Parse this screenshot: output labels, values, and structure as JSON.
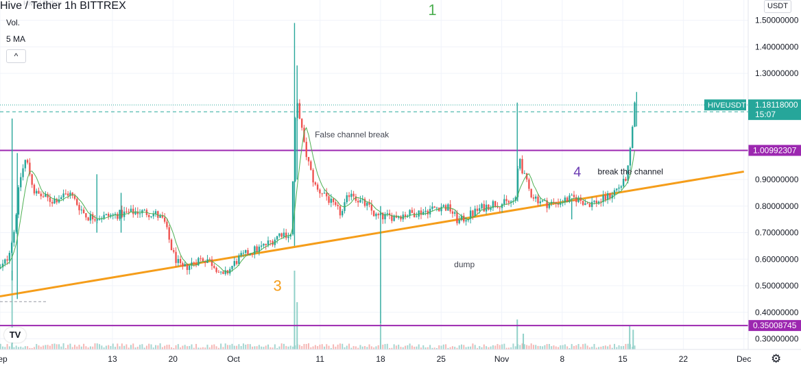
{
  "header": {
    "symbol_title": "Hive / Tether  1h  BITTREX",
    "watermark": "Hive / Tether",
    "indicators": [
      "Vol.",
      "5 MA"
    ],
    "collapse_label": "^",
    "currency": "USDT"
  },
  "logo_text": "TV",
  "settings_icon": "gear-icon",
  "chart_data": {
    "type": "candlestick",
    "symbol": "HIVEUSDT",
    "exchange": "BITTREX",
    "interval": "1h",
    "ylim": [
      0.28,
      1.6
    ],
    "y_ticks": [
      {
        "value": 0.3,
        "label": "0.30000000"
      },
      {
        "value": 0.4,
        "label": "0.40000000"
      },
      {
        "value": 0.5,
        "label": "0.50000000"
      },
      {
        "value": 0.6,
        "label": "0.60000000"
      },
      {
        "value": 0.7,
        "label": "0.70000000"
      },
      {
        "value": 0.8,
        "label": "0.80000000"
      },
      {
        "value": 0.9,
        "label": "0.90000000"
      },
      {
        "value": 1.3,
        "label": "1.30000000"
      },
      {
        "value": 1.4,
        "label": "1.40000000"
      },
      {
        "value": 1.5,
        "label": "1.50000000"
      }
    ],
    "x_ticks": [
      {
        "day": 30,
        "label": "Sep"
      },
      {
        "day": 43,
        "label": "13"
      },
      {
        "day": 50,
        "label": "20"
      },
      {
        "day": 57,
        "label": "Oct"
      },
      {
        "day": 67,
        "label": "11"
      },
      {
        "day": 74,
        "label": "18"
      },
      {
        "day": 81,
        "label": "25"
      },
      {
        "day": 88,
        "label": "Nov"
      },
      {
        "day": 95,
        "label": "8"
      },
      {
        "day": 102,
        "label": "15"
      },
      {
        "day": 109,
        "label": "22"
      },
      {
        "day": 116,
        "label": "Dec"
      }
    ],
    "xlim_days": [
      30,
      116.5
    ],
    "last_price": {
      "label": "HIVEUSDT",
      "value": 1.18118,
      "value_label": "1.18118000",
      "countdown": "15:07"
    },
    "price_levels": [
      {
        "value": 1.15537321,
        "label": "1.15537321",
        "style": "dashed",
        "color": "#26a69a"
      },
      {
        "value": 1.00992307,
        "label": "1.00992307",
        "style": "solid",
        "color": "#9c27b0"
      },
      {
        "value": 0.35008745,
        "label": "0.35008745",
        "style": "solid",
        "color": "#9c27b0"
      }
    ],
    "trendline": {
      "color": "#f59d1a",
      "points": [
        [
          30,
          0.46
        ],
        [
          116,
          0.93
        ]
      ]
    },
    "annotations": [
      {
        "text": "1",
        "day": 79.5,
        "price": 1.54,
        "color": "#4caf50",
        "size": 22
      },
      {
        "text": "False channel break",
        "day": 66.4,
        "price": 1.07,
        "color": "#434651",
        "size": 12
      },
      {
        "text": "4",
        "day": 96.3,
        "price": 0.93,
        "color": "#6a3ab2",
        "size": 20
      },
      {
        "text": "break the channel",
        "day": 99.1,
        "price": 0.93,
        "color": "#131722",
        "size": 12
      },
      {
        "text": "dump",
        "day": 82.5,
        "price": 0.58,
        "color": "#434651",
        "size": 12
      },
      {
        "text": "3",
        "day": 61.6,
        "price": 0.5,
        "color": "#f59d1a",
        "size": 22
      }
    ],
    "anchors": [
      [
        30.0,
        0.56
      ],
      [
        30.8,
        0.6
      ],
      [
        31.6,
        0.7
      ],
      [
        32.3,
        0.9
      ],
      [
        33.0,
        0.98
      ],
      [
        34.0,
        0.85
      ],
      [
        36.0,
        0.82
      ],
      [
        38.0,
        0.85
      ],
      [
        40.0,
        0.76
      ],
      [
        42.0,
        0.76
      ],
      [
        44.0,
        0.77
      ],
      [
        46.0,
        0.78
      ],
      [
        48.0,
        0.77
      ],
      [
        49.0,
        0.74
      ],
      [
        50.0,
        0.62
      ],
      [
        51.0,
        0.56
      ],
      [
        52.0,
        0.58
      ],
      [
        53.0,
        0.6
      ],
      [
        54.0,
        0.6
      ],
      [
        55.0,
        0.57
      ],
      [
        55.7,
        0.53
      ],
      [
        56.5,
        0.56
      ],
      [
        57.5,
        0.6
      ],
      [
        59.0,
        0.63
      ],
      [
        60.0,
        0.64
      ],
      [
        61.5,
        0.67
      ],
      [
        62.5,
        0.7
      ],
      [
        63.6,
        0.69
      ],
      [
        64.0,
        1.0
      ],
      [
        64.2,
        1.2
      ],
      [
        64.6,
        1.15
      ],
      [
        65.2,
        1.02
      ],
      [
        66.0,
        0.92
      ],
      [
        66.6,
        0.86
      ],
      [
        67.5,
        0.85
      ],
      [
        68.5,
        0.8
      ],
      [
        69.5,
        0.77
      ],
      [
        70.5,
        0.86
      ],
      [
        71.5,
        0.82
      ],
      [
        72.5,
        0.8
      ],
      [
        73.5,
        0.76
      ],
      [
        75.0,
        0.76
      ],
      [
        77.0,
        0.77
      ],
      [
        79.0,
        0.78
      ],
      [
        81.0,
        0.8
      ],
      [
        82.0,
        0.79
      ],
      [
        83.0,
        0.74
      ],
      [
        84.0,
        0.76
      ],
      [
        85.5,
        0.79
      ],
      [
        87.0,
        0.81
      ],
      [
        88.5,
        0.81
      ],
      [
        89.6,
        0.82
      ],
      [
        90.0,
        1.0
      ],
      [
        90.5,
        0.92
      ],
      [
        91.3,
        0.85
      ],
      [
        92.0,
        0.83
      ],
      [
        93.0,
        0.81
      ],
      [
        94.0,
        0.81
      ],
      [
        95.0,
        0.82
      ],
      [
        96.5,
        0.83
      ],
      [
        98.0,
        0.81
      ],
      [
        99.5,
        0.82
      ],
      [
        100.5,
        0.84
      ],
      [
        101.5,
        0.87
      ],
      [
        102.2,
        0.89
      ],
      [
        102.7,
        0.95
      ],
      [
        103.2,
        1.12
      ],
      [
        103.4,
        1.18
      ]
    ],
    "spikes": [
      {
        "day": 31.4,
        "high": 1.13,
        "low": 0.52
      },
      {
        "day": 32.0,
        "high": 1.0,
        "low": 0.45
      },
      {
        "day": 41.2,
        "high": 0.92,
        "low": 0.7
      },
      {
        "day": 44.0,
        "high": 0.85,
        "low": 0.7
      },
      {
        "day": 64.05,
        "high": 1.49,
        "low": 0.65
      },
      {
        "day": 64.35,
        "high": 1.33,
        "low": 0.9
      },
      {
        "day": 74.0,
        "high": 0.8,
        "low": 0.36
      },
      {
        "day": 89.8,
        "high": 1.19,
        "low": 0.82
      },
      {
        "day": 96.1,
        "high": 0.83,
        "low": 0.75
      },
      {
        "day": 103.6,
        "high": 1.23,
        "low": 1.1
      }
    ],
    "volume_spikes": [
      {
        "day": 31.4,
        "value": 1.0
      },
      {
        "day": 64.05,
        "value": 1.0
      },
      {
        "day": 64.35,
        "value": 0.6
      },
      {
        "day": 74.0,
        "value": 0.35
      },
      {
        "day": 89.8,
        "value": 0.38
      },
      {
        "day": 90.5,
        "value": 0.2
      },
      {
        "day": 102.8,
        "value": 0.3
      },
      {
        "day": 103.2,
        "value": 0.25
      }
    ],
    "series": [
      {
        "name": "5 MA",
        "color": "#4caf50"
      },
      {
        "name": "Vol.",
        "color": "#26a69a"
      }
    ],
    "colors": {
      "up": "#26a69a",
      "down": "#ef5350",
      "grid": "#f0f3fa",
      "axis_text": "#131722"
    }
  }
}
